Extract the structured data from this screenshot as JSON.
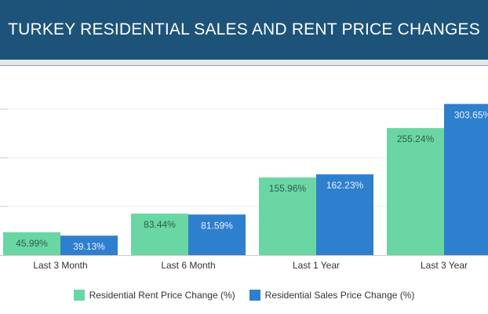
{
  "page": {
    "title": "TURKEY RESIDENTIAL SALES AND RENT PRICE CHANGES"
  },
  "colors": {
    "banner": "#1d5378",
    "rent": "#6ad6a4",
    "sales": "#2f7fcf"
  },
  "chart_data": {
    "type": "bar",
    "title": "TURKEY RESIDENTIAL SALES AND RENT PRICE CHANGES",
    "xlabel": "",
    "ylabel": "",
    "categories": [
      "Last 3 Month",
      "Last 6 Month",
      "Last 1 Year",
      "Last 3 Year"
    ],
    "series": [
      {
        "name": "Residential Rent Price Change (%)",
        "values": [
          45.99,
          83.44,
          155.96,
          255.24
        ],
        "labels": [
          "45.99%",
          "83.44%",
          "155.96%",
          "255.24%"
        ]
      },
      {
        "name": "Residential Sales Price Change (%)",
        "values": [
          39.13,
          81.59,
          162.23,
          303.65
        ],
        "labels": [
          "39.13%",
          "81.59%",
          "162.23%",
          "303.65%"
        ]
      }
    ],
    "ylim": [
      0,
      380
    ],
    "grid": true,
    "legend": "bottom"
  }
}
